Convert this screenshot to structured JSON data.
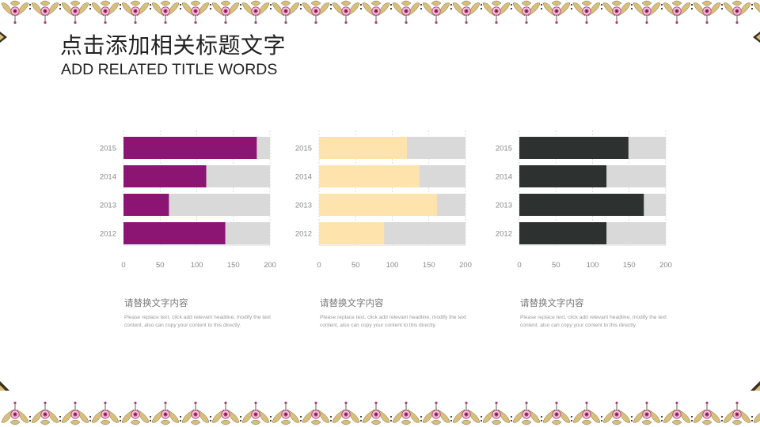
{
  "page": {
    "title": "点击添加相关标题文字",
    "subtitle": "ADD RELATED TITLE WORDS"
  },
  "colors": {
    "background_bar": "#d9d9d9",
    "grid": "#d0d0d0",
    "tick_text": "#8a8a8a",
    "border_gold": "#d9c07a",
    "border_flower": "#b23a78"
  },
  "chart_data": [
    {
      "type": "bar",
      "orientation": "horizontal",
      "stacked_background_total": 200,
      "color": "#8c1574",
      "categories": [
        "2015",
        "2014",
        "2013",
        "2012"
      ],
      "values": [
        182,
        113,
        62,
        139
      ],
      "xlim": [
        0,
        200
      ],
      "xticks": [
        "0",
        "50",
        "100",
        "150",
        "200"
      ],
      "grid": true
    },
    {
      "type": "bar",
      "orientation": "horizontal",
      "stacked_background_total": 200,
      "color": "#ffe3ad",
      "categories": [
        "2015",
        "2014",
        "2013",
        "2012"
      ],
      "values": [
        120,
        137,
        161,
        89
      ],
      "xlim": [
        0,
        200
      ],
      "xticks": [
        "0",
        "50",
        "100",
        "150",
        "200"
      ],
      "grid": true
    },
    {
      "type": "bar",
      "orientation": "horizontal",
      "stacked_background_total": 200,
      "color": "#2d3230",
      "categories": [
        "2015",
        "2014",
        "2013",
        "2012"
      ],
      "values": [
        149,
        119,
        170,
        119
      ],
      "xlim": [
        0,
        200
      ],
      "xticks": [
        "0",
        "50",
        "100",
        "150",
        "200"
      ],
      "grid": true
    }
  ],
  "captions": [
    {
      "heading": "请替换文字内容",
      "body": "Please replace text, click add relevant headline, modify the text content, also can copy your content to this directly."
    },
    {
      "heading": "请替换文字内容",
      "body": "Please replace text, click add relevant headline, modify the text content, also can copy your content to this directly."
    },
    {
      "heading": "请替换文字内容",
      "body": "Please replace text, click add relevant headline, modify the text content, also can copy your content to this directly."
    }
  ]
}
